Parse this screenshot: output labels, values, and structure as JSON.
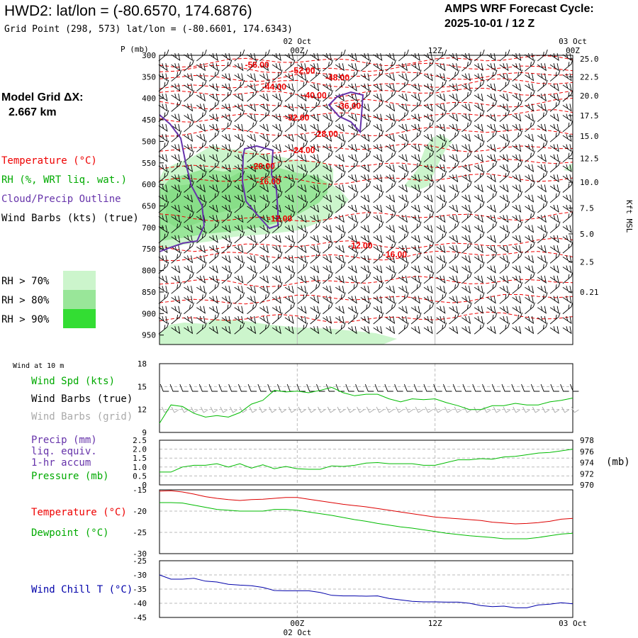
{
  "header": {
    "station": "HWD2:  lat/lon = (-80.6570, 174.6876)",
    "grid_point": "Grid Point (298, 573) lat/lon = (-80.6601, 174.6343)",
    "cycle_title": "AMPS WRF Forecast Cycle:",
    "cycle_value": "2025-10-01 / 12  Z",
    "grid_spacing_label": "Model Grid ΔX:",
    "grid_spacing_value": "2.667 km"
  },
  "colors": {
    "temperature": "#ee0000",
    "rh": "#00aa00",
    "cloud": "#6633aa",
    "wind": "#000000",
    "wind_grid": "#aaaaaa",
    "precip": "#6633aa",
    "pressure": "#00bb00",
    "windchill": "#0000aa",
    "rh70": "#ccf5cc",
    "rh80": "#99e699",
    "rh90": "#33dd33"
  },
  "time_axis": {
    "top_labels": [
      {
        "t": 12,
        "l1": "02 Oct",
        "l2": "00Z"
      },
      {
        "t": 24,
        "l1": "",
        "l2": "12Z"
      },
      {
        "t": 36,
        "l1": "03 Oct",
        "l2": "00Z"
      }
    ],
    "bottom_labels": [
      {
        "t": 12,
        "l1": "00Z",
        "l2": "02 Oct"
      },
      {
        "t": 24,
        "l1": "12Z",
        "l2": ""
      },
      {
        "t": 36,
        "l1": "03 Oct",
        "l2": ""
      }
    ],
    "range": [
      0,
      36
    ]
  },
  "cross_section": {
    "y_title": "P (mb)",
    "right_title": "Kft MSL",
    "pressure_ticks": [
      "300",
      "350",
      "400",
      "450",
      "500",
      "550",
      "600",
      "650",
      "700",
      "750",
      "800",
      "850",
      "900",
      "950"
    ],
    "kft_ticks": [
      {
        "p": 308,
        "l": "25.0"
      },
      {
        "p": 350,
        "l": "22.5"
      },
      {
        "p": 394,
        "l": "20.0"
      },
      {
        "p": 440,
        "l": "17.5"
      },
      {
        "p": 488,
        "l": "15.0"
      },
      {
        "p": 540,
        "l": "12.5"
      },
      {
        "p": 595,
        "l": "10.0"
      },
      {
        "p": 655,
        "l": "7.5"
      },
      {
        "p": 715,
        "l": "5.0"
      },
      {
        "p": 780,
        "l": "2.5"
      },
      {
        "p": 850,
        "l": "0.21"
      }
    ],
    "legend": {
      "temperature": "Temperature (°C)",
      "rh": "RH (%, WRT liq. wat.)",
      "cloud": "Cloud/Precip Outline",
      "wind": "Wind Barbs (kts) (true)",
      "rh70": "RH > 70%",
      "rh80": "RH > 80%",
      "rh90": "RH > 90%"
    }
  },
  "chart_data": [
    {
      "type": "contour",
      "name": "time-pressure cross section",
      "x": "forecast hour",
      "y": "pressure (mb)",
      "ylim": [
        950,
        300
      ],
      "isotherm_labels": [
        {
          "t": 8.5,
          "p": 322,
          "v": "-56.00"
        },
        {
          "t": 12.5,
          "p": 335,
          "v": "-52.00"
        },
        {
          "t": 15.5,
          "p": 352,
          "v": "-48.00"
        },
        {
          "t": 10,
          "p": 373,
          "v": "-44.00"
        },
        {
          "t": 13.5,
          "p": 393,
          "v": "-40.00"
        },
        {
          "t": 16.5,
          "p": 418,
          "v": "-36.00"
        },
        {
          "t": 12,
          "p": 445,
          "v": "-32.00"
        },
        {
          "t": 14.5,
          "p": 483,
          "v": "-28.00"
        },
        {
          "t": 12.5,
          "p": 521,
          "v": "-24.00"
        },
        {
          "t": 9,
          "p": 558,
          "v": "-20.00"
        },
        {
          "t": 9.5,
          "p": 593,
          "v": "-16.00"
        },
        {
          "t": 10.5,
          "p": 680,
          "v": "-12.00"
        },
        {
          "t": 17.5,
          "p": 742,
          "v": "-12.00"
        },
        {
          "t": 20.5,
          "p": 763,
          "v": "-16.00"
        }
      ],
      "rh_regions": [
        "RH > 70%",
        "RH > 80%",
        "RH > 90%"
      ]
    },
    {
      "type": "line",
      "title": "Wind at 10 m",
      "labels": [
        "Wind Spd (kts)",
        "Wind Barbs (true)",
        "Wind Barbs (grid)"
      ],
      "ylim": [
        9,
        18
      ],
      "yticks": [
        "18",
        "15",
        "12",
        "9"
      ],
      "x": [
        0,
        1,
        2,
        3,
        4,
        5,
        6,
        7,
        8,
        9,
        10,
        11,
        12,
        13,
        14,
        15,
        16,
        17,
        18,
        19,
        20,
        21,
        22,
        23,
        24,
        25,
        26,
        27,
        28,
        29,
        30,
        31,
        32,
        33,
        34,
        35,
        36
      ],
      "values": [
        10.2,
        12.6,
        12.4,
        11.5,
        11.0,
        11.2,
        11.0,
        11.6,
        12.7,
        13.2,
        14.5,
        14.3,
        14.4,
        14.2,
        14.5,
        14.9,
        14.2,
        13.8,
        14.0,
        14.0,
        13.4,
        13.0,
        13.4,
        13.3,
        13.4,
        12.9,
        12.5,
        12.0,
        12.0,
        12.5,
        12.5,
        12.8,
        12.6,
        12.6,
        13.0,
        13.2,
        13.5
      ]
    },
    {
      "type": "line",
      "labels": [
        "Precip (mm)",
        "liq. equiv.",
        "1-hr accum",
        "Pressure (mb)"
      ],
      "unit_right": "(mb)",
      "ylim_left": [
        0,
        2.5
      ],
      "yticks_left": [
        "2.5",
        "2.0",
        "1.5",
        "1.0",
        "0.5",
        "0"
      ],
      "ylim_right": [
        970,
        978
      ],
      "yticks_right": [
        "978",
        "976",
        "974",
        "972",
        "970"
      ],
      "precip": [
        0,
        0,
        0,
        0,
        0,
        0,
        0,
        0,
        0,
        0,
        0,
        0,
        0,
        0,
        0,
        0,
        0,
        0,
        0,
        0,
        0,
        0,
        0,
        0,
        0,
        0,
        0,
        0,
        0,
        0,
        0,
        0,
        0,
        0,
        0,
        0,
        0
      ],
      "x": [
        0,
        1,
        2,
        3,
        4,
        5,
        6,
        7,
        8,
        9,
        10,
        11,
        12,
        13,
        14,
        15,
        16,
        17,
        18,
        19,
        20,
        21,
        22,
        23,
        24,
        25,
        26,
        27,
        28,
        29,
        30,
        31,
        32,
        33,
        34,
        35,
        36
      ],
      "pressure": [
        972.3,
        972.3,
        973.2,
        973.5,
        973.5,
        973.8,
        973.2,
        973.8,
        973.0,
        973.6,
        972.9,
        973.3,
        972.9,
        972.8,
        972.8,
        973.4,
        973.3,
        973.5,
        973.9,
        974.0,
        973.8,
        973.8,
        973.8,
        973.5,
        973.5,
        974.0,
        974.5,
        974.5,
        974.7,
        974.6,
        975.0,
        975.1,
        975.4,
        975.7,
        975.8,
        976.1,
        976.4
      ]
    },
    {
      "type": "line",
      "labels": [
        "Temperature (°C)",
        "Dewpoint (°C)"
      ],
      "ylim": [
        -30,
        -15
      ],
      "yticks": [
        "-15",
        "-20",
        "-25",
        "-30"
      ],
      "x": [
        0,
        1,
        2,
        3,
        4,
        5,
        6,
        7,
        8,
        9,
        10,
        11,
        12,
        13,
        14,
        15,
        16,
        17,
        18,
        19,
        20,
        21,
        22,
        23,
        24,
        25,
        26,
        27,
        28,
        29,
        30,
        31,
        32,
        33,
        34,
        35,
        36
      ],
      "temperature": [
        -15.3,
        -15.2,
        -15.5,
        -16.0,
        -16.6,
        -17.0,
        -17.3,
        -17.5,
        -17.3,
        -17.2,
        -17.0,
        -16.8,
        -16.8,
        -17.2,
        -17.6,
        -18.0,
        -18.4,
        -18.7,
        -19.0,
        -19.4,
        -19.8,
        -20.2,
        -20.6,
        -21.0,
        -21.4,
        -21.6,
        -21.8,
        -22.0,
        -22.2,
        -22.6,
        -22.8,
        -23.0,
        -22.9,
        -22.7,
        -22.4,
        -21.9,
        -21.7
      ],
      "dewpoint": [
        -18.0,
        -18.0,
        -18.1,
        -18.6,
        -19.1,
        -19.6,
        -19.8,
        -20.0,
        -20.0,
        -20.0,
        -19.6,
        -19.6,
        -19.8,
        -20.2,
        -20.6,
        -21.0,
        -21.5,
        -22.0,
        -22.4,
        -22.9,
        -23.3,
        -23.7,
        -24.0,
        -24.4,
        -24.8,
        -25.2,
        -25.5,
        -25.8,
        -26.0,
        -26.2,
        -26.5,
        -26.5,
        -26.5,
        -26.2,
        -25.8,
        -25.4,
        -25.2
      ]
    },
    {
      "type": "line",
      "labels": [
        "Wind Chill T (°C)"
      ],
      "ylim": [
        -45,
        -25
      ],
      "yticks": [
        "-25",
        "-30",
        "-35",
        "-40",
        "-45"
      ],
      "x": [
        0,
        1,
        2,
        3,
        4,
        5,
        6,
        7,
        8,
        9,
        10,
        11,
        12,
        13,
        14,
        15,
        16,
        17,
        18,
        19,
        20,
        21,
        22,
        23,
        24,
        25,
        26,
        27,
        28,
        29,
        30,
        31,
        32,
        33,
        34,
        35,
        36
      ],
      "windchill": [
        -30.0,
        -31.5,
        -31.5,
        -31.2,
        -32.2,
        -32.5,
        -33.3,
        -33.6,
        -33.8,
        -34.4,
        -35.5,
        -35.6,
        -35.6,
        -35.6,
        -36.2,
        -37.2,
        -37.4,
        -37.4,
        -37.5,
        -37.4,
        -38.3,
        -38.8,
        -39.3,
        -39.5,
        -39.5,
        -39.6,
        -39.6,
        -40.0,
        -40.8,
        -41.2,
        -41.0,
        -41.6,
        -41.6,
        -40.6,
        -40.3,
        -39.8,
        -40.2
      ]
    }
  ]
}
